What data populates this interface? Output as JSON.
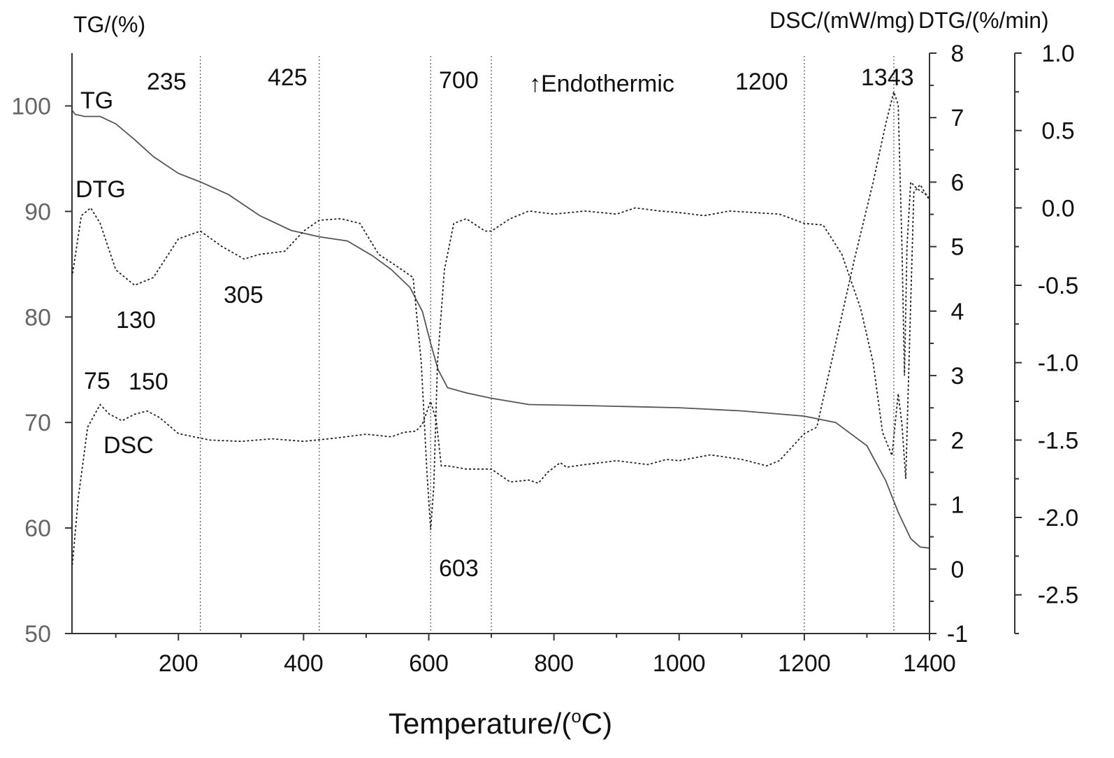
{
  "chart_data": {
    "type": "line",
    "xlabel": "Temperature/(°C)",
    "xlabel_main": "Temperature/(",
    "xlabel_sup": "o",
    "xlabel_tail": "C)",
    "xlim": [
      30,
      1400
    ],
    "x_ticks": [
      200,
      400,
      600,
      800,
      1000,
      1200,
      1400
    ],
    "x_tick_labels": [
      "200",
      "400",
      "600",
      "800",
      "1000",
      "1200",
      "1400"
    ],
    "x_minor_ticks": [
      100,
      300,
      500,
      700,
      900,
      1100,
      1300
    ],
    "axes": {
      "tg": {
        "label": "TG/(%)",
        "ylim": [
          50,
          105
        ],
        "ticks": [
          50,
          60,
          70,
          80,
          90,
          100
        ],
        "tick_labels": [
          "50",
          "60",
          "70",
          "80",
          "90",
          "100"
        ]
      },
      "dsc": {
        "label": "DSC/(mW/mg)",
        "ylim": [
          -1,
          8
        ],
        "ticks": [
          -1,
          0,
          1,
          2,
          3,
          4,
          5,
          6,
          7,
          8
        ],
        "tick_labels": [
          "-1",
          "0",
          "1",
          "2",
          "3",
          "4",
          "5",
          "6",
          "7",
          "8"
        ]
      },
      "dtg": {
        "label": "DTG/(%/min)",
        "ylim": [
          -2.75,
          1.0
        ],
        "ticks": [
          -2.5,
          -2.0,
          -1.5,
          -1.0,
          -0.5,
          0.0,
          0.5,
          1.0
        ],
        "tick_labels": [
          "-2.5",
          "-2.0",
          "-1.5",
          "-1.0",
          "-0.5",
          "0.0",
          "0.5",
          "1.0"
        ]
      }
    },
    "series": [
      {
        "name": "TG",
        "axis": "tg",
        "style": "solid",
        "color": "#555555",
        "points": [
          [
            30,
            99.6
          ],
          [
            35,
            99.2
          ],
          [
            50,
            99.0
          ],
          [
            75,
            99.0
          ],
          [
            100,
            98.3
          ],
          [
            130,
            96.8
          ],
          [
            160,
            95.2
          ],
          [
            200,
            93.6
          ],
          [
            235,
            92.8
          ],
          [
            280,
            91.6
          ],
          [
            330,
            89.6
          ],
          [
            380,
            88.2
          ],
          [
            425,
            87.6
          ],
          [
            470,
            87.2
          ],
          [
            510,
            85.8
          ],
          [
            540,
            84.5
          ],
          [
            570,
            82.8
          ],
          [
            590,
            80.5
          ],
          [
            603,
            77.5
          ],
          [
            615,
            75.0
          ],
          [
            630,
            73.3
          ],
          [
            660,
            72.8
          ],
          [
            700,
            72.3
          ],
          [
            760,
            71.7
          ],
          [
            850,
            71.6
          ],
          [
            1000,
            71.4
          ],
          [
            1100,
            71.1
          ],
          [
            1200,
            70.6
          ],
          [
            1250,
            70.0
          ],
          [
            1300,
            67.8
          ],
          [
            1330,
            64.5
          ],
          [
            1350,
            61.5
          ],
          [
            1370,
            59.0
          ],
          [
            1385,
            58.2
          ],
          [
            1400,
            58.1
          ]
        ]
      },
      {
        "name": "DTG",
        "axis": "dtg",
        "style": "dotted",
        "color": "#222222",
        "points": [
          [
            30,
            -0.45
          ],
          [
            45,
            -0.05
          ],
          [
            60,
            0.0
          ],
          [
            75,
            -0.1
          ],
          [
            100,
            -0.4
          ],
          [
            130,
            -0.5
          ],
          [
            160,
            -0.45
          ],
          [
            200,
            -0.2
          ],
          [
            235,
            -0.15
          ],
          [
            270,
            -0.25
          ],
          [
            305,
            -0.33
          ],
          [
            330,
            -0.3
          ],
          [
            370,
            -0.28
          ],
          [
            400,
            -0.15
          ],
          [
            425,
            -0.08
          ],
          [
            460,
            -0.07
          ],
          [
            490,
            -0.1
          ],
          [
            520,
            -0.3
          ],
          [
            550,
            -0.38
          ],
          [
            575,
            -0.45
          ],
          [
            588,
            -1.0
          ],
          [
            597,
            -1.7
          ],
          [
            603,
            -2.08
          ],
          [
            608,
            -1.8
          ],
          [
            614,
            -1.0
          ],
          [
            625,
            -0.4
          ],
          [
            640,
            -0.1
          ],
          [
            660,
            -0.07
          ],
          [
            690,
            -0.15
          ],
          [
            700,
            -0.15
          ],
          [
            730,
            -0.07
          ],
          [
            760,
            -0.02
          ],
          [
            800,
            -0.04
          ],
          [
            850,
            -0.02
          ],
          [
            900,
            -0.04
          ],
          [
            930,
            0.0
          ],
          [
            970,
            -0.02
          ],
          [
            1000,
            -0.03
          ],
          [
            1040,
            -0.05
          ],
          [
            1080,
            -0.02
          ],
          [
            1120,
            -0.03
          ],
          [
            1160,
            -0.04
          ],
          [
            1200,
            -0.1
          ],
          [
            1230,
            -0.11
          ],
          [
            1260,
            -0.3
          ],
          [
            1290,
            -0.65
          ],
          [
            1310,
            -1.0
          ],
          [
            1325,
            -1.45
          ],
          [
            1340,
            -1.6
          ],
          [
            1350,
            -1.2
          ],
          [
            1356,
            -1.4
          ],
          [
            1362,
            -1.75
          ],
          [
            1368,
            -0.9
          ],
          [
            1375,
            0.1
          ],
          [
            1385,
            0.15
          ],
          [
            1400,
            0.05
          ]
        ]
      },
      {
        "name": "DSC",
        "axis": "dsc",
        "style": "dotted",
        "color": "#222222",
        "points": [
          [
            30,
            0.0
          ],
          [
            40,
            1.1
          ],
          [
            55,
            2.2
          ],
          [
            75,
            2.55
          ],
          [
            90,
            2.4
          ],
          [
            110,
            2.3
          ],
          [
            130,
            2.4
          ],
          [
            150,
            2.45
          ],
          [
            170,
            2.35
          ],
          [
            200,
            2.1
          ],
          [
            250,
            2.0
          ],
          [
            300,
            1.98
          ],
          [
            350,
            2.02
          ],
          [
            400,
            1.98
          ],
          [
            450,
            2.03
          ],
          [
            500,
            2.09
          ],
          [
            540,
            2.05
          ],
          [
            560,
            2.12
          ],
          [
            580,
            2.14
          ],
          [
            590,
            2.25
          ],
          [
            603,
            2.6
          ],
          [
            612,
            2.3
          ],
          [
            620,
            1.6
          ],
          [
            630,
            1.6
          ],
          [
            660,
            1.55
          ],
          [
            700,
            1.55
          ],
          [
            730,
            1.35
          ],
          [
            760,
            1.38
          ],
          [
            775,
            1.33
          ],
          [
            790,
            1.5
          ],
          [
            810,
            1.65
          ],
          [
            820,
            1.58
          ],
          [
            850,
            1.62
          ],
          [
            900,
            1.68
          ],
          [
            950,
            1.62
          ],
          [
            980,
            1.7
          ],
          [
            1000,
            1.68
          ],
          [
            1050,
            1.77
          ],
          [
            1100,
            1.7
          ],
          [
            1140,
            1.6
          ],
          [
            1160,
            1.68
          ],
          [
            1200,
            2.1
          ],
          [
            1220,
            2.2
          ],
          [
            1250,
            3.5
          ],
          [
            1280,
            4.8
          ],
          [
            1310,
            6.0
          ],
          [
            1330,
            6.9
          ],
          [
            1343,
            7.4
          ],
          [
            1350,
            7.2
          ],
          [
            1356,
            5.0
          ],
          [
            1360,
            3.0
          ],
          [
            1364,
            5.0
          ],
          [
            1370,
            6.0
          ],
          [
            1380,
            5.9
          ],
          [
            1395,
            5.8
          ],
          [
            1400,
            5.75
          ]
        ]
      }
    ],
    "annotations": {
      "tg_label": "TG",
      "dtg_label": "DTG",
      "dsc_label": "DSC",
      "v235": "235",
      "v425": "425",
      "v700": "700",
      "endothermic": "↑Endothermic",
      "v1200": "1200",
      "v1343": "1343",
      "v130": "130",
      "v305": "305",
      "v75": "75",
      "v150": "150",
      "v603": "603"
    },
    "vertical_lines": [
      235,
      425,
      603,
      700,
      1200,
      1343
    ],
    "grid": false
  }
}
